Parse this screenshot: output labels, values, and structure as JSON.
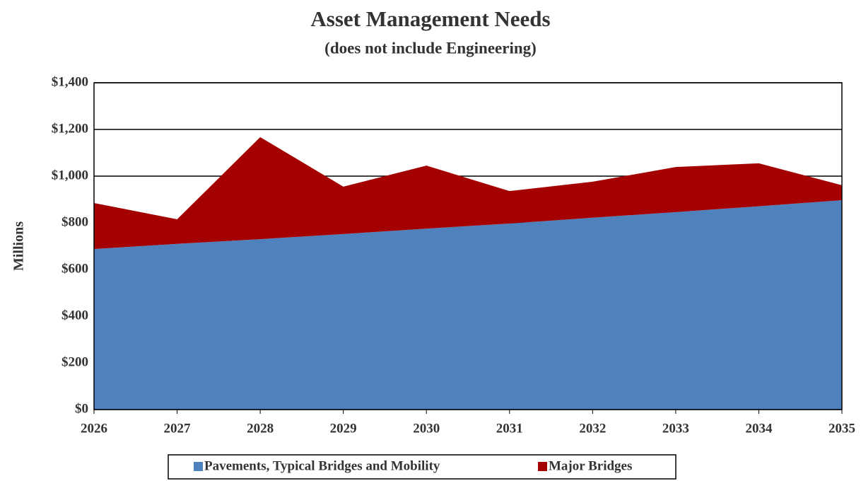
{
  "chart_data": {
    "type": "area",
    "stacked": true,
    "title": "Asset Management Needs",
    "subtitle": "(does not include Engineering)",
    "y_label": "Millions",
    "categories": [
      "2026",
      "2027",
      "2028",
      "2029",
      "2030",
      "2031",
      "2032",
      "2033",
      "2034",
      "2035"
    ],
    "series": [
      {
        "name": "Pavements, Typical Bridges and Mobility",
        "color": "#4f81bd",
        "values": [
          688,
          710,
          730,
          752,
          775,
          797,
          822,
          846,
          871,
          897
        ]
      },
      {
        "name": "Major Bridges",
        "color": "#a50000",
        "values": [
          197,
          105,
          437,
          203,
          270,
          139,
          154,
          193,
          184,
          64
        ]
      }
    ],
    "ylim": [
      0,
      1400
    ],
    "yticks": [
      {
        "value": 0,
        "label": "$0"
      },
      {
        "value": 200,
        "label": "$200"
      },
      {
        "value": 400,
        "label": "$400"
      },
      {
        "value": 600,
        "label": "$600"
      },
      {
        "value": 800,
        "label": "$800"
      },
      {
        "value": 1000,
        "label": "$1,000"
      },
      {
        "value": 1200,
        "label": "$1,200"
      },
      {
        "value": 1400,
        "label": "$1,400"
      }
    ],
    "grid": true,
    "legend": "bottom"
  }
}
